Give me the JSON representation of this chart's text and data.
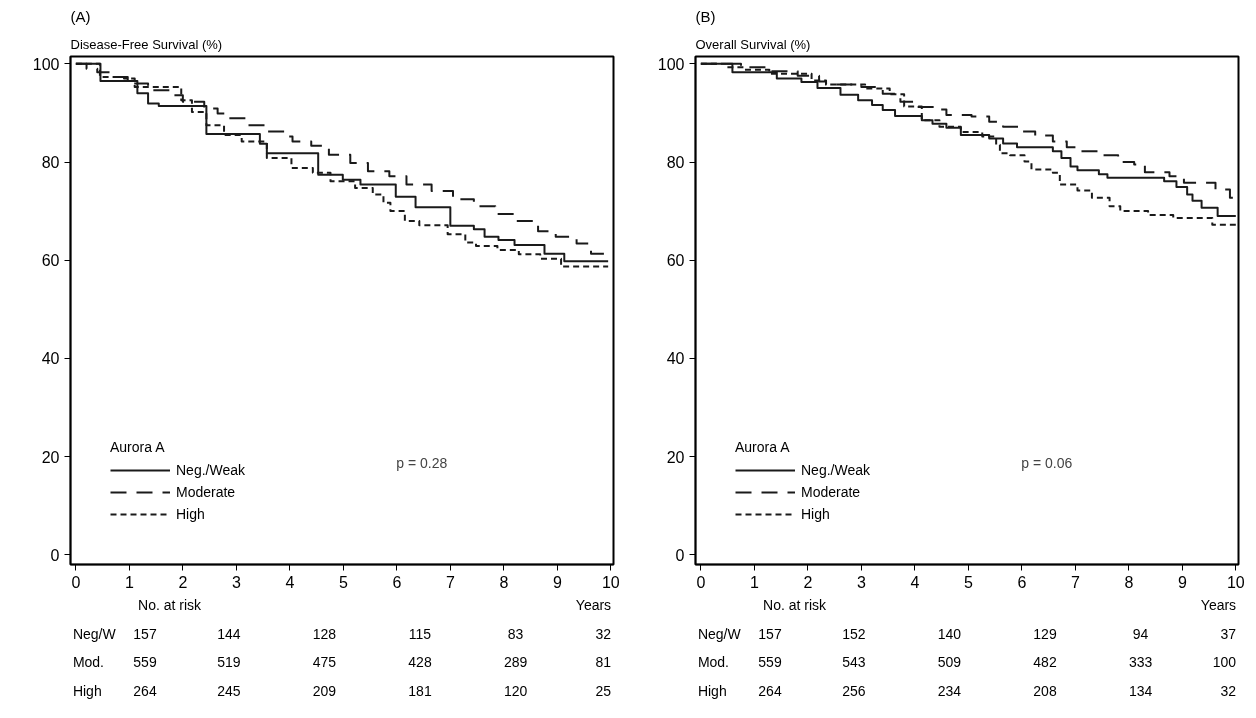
{
  "chart_data": [
    {
      "type": "step",
      "title": "Disease-Free Survival (%)",
      "xlabel": "Years",
      "legend_title": "Aurora A",
      "legend": "bottom left",
      "grid": false,
      "xlim": [
        -0.1,
        10.05
      ],
      "ylim": [
        -2,
        101.5
      ],
      "xticks": [
        0,
        1,
        2,
        3,
        4,
        5,
        6,
        7,
        8,
        9,
        10
      ],
      "yticks": [
        0,
        20,
        40,
        60,
        80,
        100
      ],
      "annotations": [
        "(A)",
        "p = 0.28",
        "No. at risk",
        "Neg/W 157 144 128 115 83 32",
        "Mod. 559 519 475 428 289 81",
        "High 264 245 209 181 120 25"
      ],
      "series": [
        {
          "name": "Neg./Weak",
          "color": "#1a1a1a",
          "line_style": "solid",
          "x": [
            0,
            0.46,
            1.15,
            1.35,
            1.55,
            2.44,
            3.44,
            3.57,
            4.53,
            4.99,
            5.32,
            5.98,
            6.35,
            7.0,
            7.44,
            7.64,
            7.9,
            8.2,
            8.76,
            9.13,
            9.95
          ],
          "values": [
            100,
            96.5,
            94.0,
            91.9,
            91.4,
            85.7,
            83.7,
            81.8,
            77.4,
            76.4,
            75.4,
            72.9,
            70.8,
            67.0,
            66.3,
            64.8,
            64.1,
            63.1,
            61.3,
            59.8,
            59.8
          ]
        },
        {
          "name": "Moderate",
          "color": "#1a1a1a",
          "line_style": "dashed",
          "x": [
            0,
            0.2,
            0.4,
            0.7,
            0.97,
            1.35,
            1.8,
            2.0,
            2.4,
            2.65,
            2.85,
            3.2,
            3.58,
            3.9,
            4.05,
            4.4,
            4.73,
            5.13,
            5.46,
            5.86,
            6.18,
            6.65,
            7.05,
            7.44,
            7.84,
            8.24,
            8.64,
            8.97,
            9.36,
            9.63,
            9.95
          ],
          "values": [
            100,
            99,
            98.3,
            97.3,
            96,
            94.6,
            93.6,
            92.3,
            90.9,
            89.9,
            88.9,
            87.5,
            86.2,
            85.2,
            84.2,
            83.3,
            81.5,
            79.8,
            78.1,
            77.1,
            75.4,
            74.1,
            72.4,
            71.0,
            69.4,
            68.0,
            65.9,
            64.8,
            63.4,
            61.3,
            61.3
          ]
        },
        {
          "name": "High",
          "color": "#1a1a1a",
          "line_style": "dotted",
          "x": [
            0,
            0.45,
            0.9,
            1.1,
            1.97,
            2.17,
            2.44,
            2.77,
            3.1,
            3.57,
            4.03,
            4.43,
            4.76,
            5.22,
            5.55,
            5.75,
            5.88,
            6.15,
            6.42,
            6.95,
            7.28,
            7.48,
            7.88,
            8.28,
            8.68,
            9.07,
            9.95
          ],
          "values": [
            100,
            97.3,
            97.0,
            95.3,
            92.6,
            90.2,
            87.5,
            85.5,
            84.2,
            80.8,
            78.8,
            77.8,
            76.1,
            74.7,
            73.4,
            71.7,
            70.0,
            68.0,
            67.1,
            65.3,
            63.6,
            62.9,
            62.1,
            61.2,
            60.3,
            58.7,
            58.7
          ]
        }
      ]
    },
    {
      "type": "step",
      "title": "Overall Survival (%)",
      "xlabel": "Years",
      "legend_title": "Aurora A",
      "legend": "bottom left",
      "grid": false,
      "xlim": [
        -0.1,
        10.05
      ],
      "ylim": [
        -2,
        101.5
      ],
      "xticks": [
        0,
        1,
        2,
        3,
        4,
        5,
        6,
        7,
        8,
        9,
        10
      ],
      "yticks": [
        0,
        20,
        40,
        60,
        80,
        100
      ],
      "annotations": [
        "(B)",
        "p = 0.06",
        "No. at risk",
        "Neg/W 157 152 140 129 94 37",
        "Mod. 559 543 509 482 333 100",
        "High 264 256 234 208 134 32"
      ],
      "series": [
        {
          "name": "Neg./Weak",
          "color": "#1a1a1a",
          "line_style": "solid",
          "x": [
            0,
            0.59,
            1.42,
            1.88,
            2.18,
            2.61,
            2.94,
            3.2,
            3.4,
            3.63,
            4.13,
            4.33,
            4.59,
            4.86,
            5.39,
            5.65,
            5.91,
            6.58,
            6.74,
            6.91,
            7.04,
            7.44,
            7.6,
            8.66,
            8.89,
            9.09,
            9.19,
            9.36,
            9.66,
            10
          ],
          "values": [
            100,
            98.3,
            97.0,
            96.3,
            95.1,
            93.7,
            92.6,
            91.6,
            90.6,
            89.4,
            88.5,
            87.8,
            87.0,
            85.5,
            84.8,
            83.8,
            83.0,
            82.2,
            80.8,
            79.1,
            78.3,
            77.5,
            76.8,
            76.1,
            74.9,
            73.4,
            72.1,
            70.7,
            69.0,
            69.0
          ]
        },
        {
          "name": "Moderate",
          "color": "#1a1a1a",
          "line_style": "dashed",
          "x": [
            0,
            0.75,
            1.22,
            1.81,
            2.21,
            2.34,
            3.0,
            3.4,
            3.73,
            4.03,
            4.4,
            4.59,
            5.06,
            5.39,
            5.65,
            5.98,
            6.25,
            6.58,
            6.84,
            7.11,
            7.44,
            7.8,
            8.1,
            8.3,
            8.76,
            9.03,
            9.62,
            9.89,
            10
          ],
          "values": [
            100,
            99.3,
            98.5,
            97.6,
            96.4,
            95.8,
            95.3,
            93.9,
            92.3,
            91.2,
            90.7,
            89.6,
            89.3,
            88.2,
            87.2,
            86.2,
            85.4,
            84.2,
            83.0,
            82.2,
            81.4,
            80.0,
            79.5,
            77.9,
            77.1,
            75.8,
            74.4,
            72.7,
            72.7
          ]
        },
        {
          "name": "High",
          "color": "#1a1a1a",
          "line_style": "dotted",
          "x": [
            0,
            0.49,
            0.82,
            1.28,
            2.07,
            2.34,
            3.07,
            3.53,
            3.8,
            4.13,
            4.46,
            4.86,
            5.26,
            5.52,
            5.59,
            5.78,
            6.05,
            6.18,
            6.58,
            6.71,
            7.04,
            7.31,
            7.64,
            7.84,
            8.36,
            8.83,
            9.56,
            10
          ],
          "values": [
            100,
            99.3,
            98.8,
            98.0,
            96.6,
            95.8,
            95.0,
            93.8,
            91.3,
            88.5,
            87.2,
            86.1,
            85.2,
            83.5,
            81.8,
            81.4,
            80.1,
            78.5,
            77.8,
            75.4,
            74.2,
            72.7,
            71.0,
            70.0,
            69.2,
            68.6,
            67.2,
            67.2
          ]
        }
      ]
    }
  ]
}
